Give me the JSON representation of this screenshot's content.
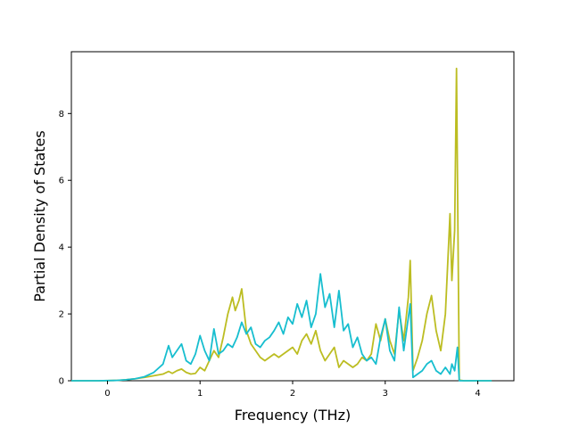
{
  "chart_data": {
    "type": "line",
    "title": "",
    "xlabel": "Frequency (THz)",
    "ylabel": "Partial Density of States",
    "xlim": [
      -0.39,
      4.39
    ],
    "ylim": [
      0,
      9.85
    ],
    "xticks": [
      0,
      1,
      2,
      3,
      4
    ],
    "xtick_labels": [
      "0",
      "1",
      "2",
      "3",
      "4"
    ],
    "yticks": [
      0,
      2,
      4,
      6,
      8
    ],
    "ytick_labels": [
      "0",
      "2",
      "4",
      "6",
      "8"
    ],
    "grid": false,
    "legend": "none",
    "series": [
      {
        "color": "#bcbd22",
        "x": [
          -0.39,
          -0.1,
          0.1,
          0.2,
          0.3,
          0.4,
          0.5,
          0.6,
          0.66,
          0.7,
          0.75,
          0.8,
          0.85,
          0.9,
          0.95,
          1.0,
          1.05,
          1.1,
          1.15,
          1.2,
          1.25,
          1.3,
          1.35,
          1.38,
          1.42,
          1.45,
          1.48,
          1.5,
          1.55,
          1.6,
          1.65,
          1.7,
          1.75,
          1.8,
          1.85,
          1.9,
          1.95,
          2.0,
          2.05,
          2.1,
          2.15,
          2.2,
          2.25,
          2.3,
          2.35,
          2.4,
          2.45,
          2.5,
          2.55,
          2.6,
          2.65,
          2.7,
          2.75,
          2.8,
          2.85,
          2.9,
          2.95,
          3.0,
          3.05,
          3.1,
          3.15,
          3.2,
          3.25,
          3.27,
          3.3,
          3.35,
          3.4,
          3.45,
          3.5,
          3.55,
          3.6,
          3.65,
          3.7,
          3.72,
          3.75,
          3.77,
          3.8,
          3.85,
          4.0,
          4.15
        ],
        "y": [
          0,
          0,
          0.01,
          0.03,
          0.06,
          0.1,
          0.15,
          0.2,
          0.28,
          0.22,
          0.3,
          0.35,
          0.25,
          0.2,
          0.22,
          0.4,
          0.3,
          0.6,
          0.9,
          0.7,
          1.3,
          2.0,
          2.5,
          2.1,
          2.4,
          2.75,
          2.0,
          1.5,
          1.1,
          0.9,
          0.7,
          0.6,
          0.7,
          0.8,
          0.7,
          0.8,
          0.9,
          1.0,
          0.8,
          1.2,
          1.4,
          1.1,
          1.5,
          0.9,
          0.6,
          0.8,
          1.0,
          0.4,
          0.6,
          0.5,
          0.4,
          0.5,
          0.7,
          0.6,
          0.8,
          1.7,
          1.2,
          1.85,
          1.2,
          0.8,
          2.1,
          1.2,
          2.5,
          3.6,
          0.3,
          0.7,
          1.2,
          2.0,
          2.55,
          1.5,
          0.9,
          2.0,
          5.0,
          3.0,
          4.5,
          9.35,
          0.02,
          0,
          0,
          0
        ]
      },
      {
        "color": "#17becf",
        "x": [
          -0.39,
          -0.1,
          0.1,
          0.2,
          0.3,
          0.4,
          0.5,
          0.6,
          0.66,
          0.7,
          0.75,
          0.8,
          0.85,
          0.9,
          0.95,
          1.0,
          1.05,
          1.1,
          1.15,
          1.2,
          1.25,
          1.3,
          1.35,
          1.4,
          1.45,
          1.5,
          1.55,
          1.6,
          1.65,
          1.7,
          1.75,
          1.8,
          1.85,
          1.9,
          1.95,
          2.0,
          2.05,
          2.1,
          2.15,
          2.2,
          2.25,
          2.3,
          2.35,
          2.4,
          2.45,
          2.5,
          2.55,
          2.6,
          2.65,
          2.7,
          2.75,
          2.8,
          2.85,
          2.9,
          2.95,
          3.0,
          3.05,
          3.1,
          3.15,
          3.2,
          3.25,
          3.27,
          3.3,
          3.4,
          3.45,
          3.5,
          3.55,
          3.6,
          3.65,
          3.7,
          3.72,
          3.75,
          3.78,
          3.8,
          3.85,
          4.0,
          4.15
        ],
        "y": [
          0,
          0,
          0.01,
          0.03,
          0.06,
          0.12,
          0.25,
          0.5,
          1.05,
          0.7,
          0.9,
          1.1,
          0.6,
          0.5,
          0.8,
          1.35,
          0.9,
          0.6,
          1.55,
          0.8,
          0.9,
          1.1,
          1.0,
          1.3,
          1.75,
          1.4,
          1.6,
          1.1,
          1.0,
          1.2,
          1.3,
          1.5,
          1.75,
          1.4,
          1.9,
          1.7,
          2.3,
          1.9,
          2.4,
          1.6,
          2.0,
          3.2,
          2.2,
          2.6,
          1.6,
          2.7,
          1.5,
          1.7,
          1.0,
          1.3,
          0.8,
          0.6,
          0.7,
          0.5,
          1.3,
          1.85,
          0.9,
          0.6,
          2.2,
          0.9,
          1.9,
          2.3,
          0.1,
          0.3,
          0.5,
          0.6,
          0.3,
          0.2,
          0.4,
          0.2,
          0.5,
          0.3,
          1.0,
          0,
          0,
          0,
          0
        ]
      }
    ]
  }
}
